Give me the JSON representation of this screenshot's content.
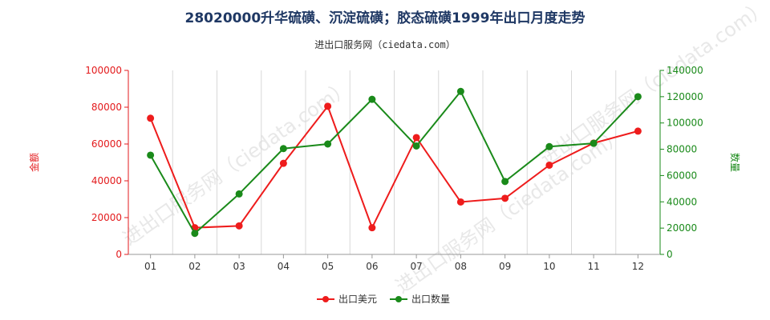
{
  "chart_data": {
    "type": "line",
    "title": "28020000升华硫磺、沉淀硫磺；胶态硫磺1999年出口月度走势",
    "subtitle": "进出口服务网（ciedata.com）",
    "watermark": "进出口服务网（ciedata.com）",
    "categories": [
      "01",
      "02",
      "03",
      "04",
      "05",
      "06",
      "07",
      "08",
      "09",
      "10",
      "11",
      "12"
    ],
    "left_axis": {
      "label": "金额",
      "color": "#e31a1c",
      "ylim": [
        0,
        100000
      ],
      "ticks": [
        "0",
        "20000",
        "40000",
        "60000",
        "80000",
        "100000"
      ]
    },
    "right_axis": {
      "label": "数量",
      "color": "#1a8a1a",
      "ylim": [
        0,
        140000
      ],
      "ticks": [
        "0",
        "20000",
        "40000",
        "60000",
        "80000",
        "100000",
        "120000",
        "140000"
      ]
    },
    "series": [
      {
        "name": "出口美元",
        "axis": "left",
        "color": "#ee1c1c",
        "values": [
          74000,
          14500,
          15500,
          49500,
          80500,
          14500,
          63500,
          28500,
          30500,
          48500,
          60500,
          67000
        ]
      },
      {
        "name": "出口数量",
        "axis": "right",
        "color": "#1a8a1a",
        "values": [
          75500,
          16000,
          46000,
          80500,
          84000,
          118000,
          82500,
          124000,
          55500,
          82000,
          84500,
          120000
        ]
      }
    ],
    "grid": "vertical",
    "legend_position": "bottom"
  }
}
